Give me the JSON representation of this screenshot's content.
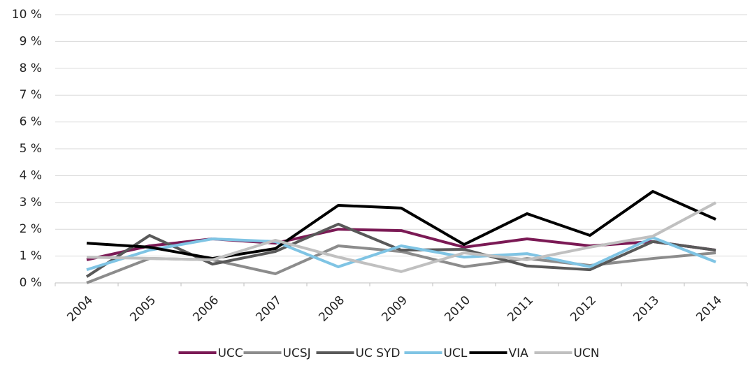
{
  "chart_data": {
    "type": "line",
    "categories": [
      "2004",
      "2005",
      "2006",
      "2007",
      "2008",
      "2009",
      "2010",
      "2011",
      "2012",
      "2013",
      "2014"
    ],
    "series": [
      {
        "name": "UCC",
        "color": "#7b1a55",
        "values": [
          0.86,
          1.38,
          1.64,
          1.48,
          2.0,
          1.95,
          1.33,
          1.64,
          1.38,
          1.54,
          1.22
        ]
      },
      {
        "name": "UCSJ",
        "color": "#8c8c8c",
        "values": [
          0,
          0.91,
          0.86,
          0.34,
          1.38,
          1.17,
          0.6,
          0.91,
          0.65,
          0.91,
          1.12
        ]
      },
      {
        "name": "UC SYD",
        "color": "#595959",
        "values": [
          0.23,
          1.77,
          0.7,
          1.17,
          2.19,
          1.22,
          1.25,
          0.63,
          0.49,
          1.54,
          1.22
        ]
      },
      {
        "name": "UCL",
        "color": "#7fc4e4",
        "values": [
          0.49,
          1.22,
          1.64,
          1.54,
          0.6,
          1.38,
          0.96,
          1.09,
          0.6,
          1.69,
          0.78
        ]
      },
      {
        "name": "VIA",
        "color": "#000000",
        "values": [
          1.48,
          1.33,
          0.91,
          1.28,
          2.89,
          2.79,
          1.43,
          2.58,
          1.77,
          3.41,
          2.37
        ]
      },
      {
        "name": "UCN",
        "color": "#c0c0c0",
        "values": [
          0.96,
          0.91,
          0.86,
          1.59,
          0.96,
          0.42,
          1.12,
          0.86,
          1.33,
          1.74,
          2.99
        ]
      }
    ],
    "ylim": [
      0,
      10
    ],
    "yticks": [
      {
        "value": 0,
        "label": "0 %"
      },
      {
        "value": 1,
        "label": "1 %"
      },
      {
        "value": 2,
        "label": "2 %"
      },
      {
        "value": 3,
        "label": "3 %"
      },
      {
        "value": 4,
        "label": "4 %"
      },
      {
        "value": 5,
        "label": "5 %"
      },
      {
        "value": 6,
        "label": "6 %"
      },
      {
        "value": 7,
        "label": "7 %"
      },
      {
        "value": 8,
        "label": "8 %"
      },
      {
        "value": 9,
        "label": "9 %"
      },
      {
        "value": 10,
        "label": "10 %"
      }
    ],
    "grid": true,
    "legend": "bottom"
  }
}
